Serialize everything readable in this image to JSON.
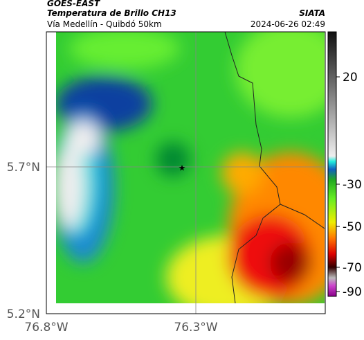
{
  "header": {
    "title": "GOES-EAST",
    "subtitle": "Temperatura de Brillo CH13",
    "route": "Vía Medellín - Quibdó 50km",
    "source": "SIATA",
    "timestamp": "2024-06-26 02:49"
  },
  "map": {
    "lat_labels": [
      "5.7°N",
      "5.2°N"
    ],
    "lon_labels": [
      "76.8°W",
      "76.3°W"
    ]
  },
  "colorbar": {
    "ticks": [
      20,
      -30,
      -50,
      -70,
      -90
    ]
  }
}
